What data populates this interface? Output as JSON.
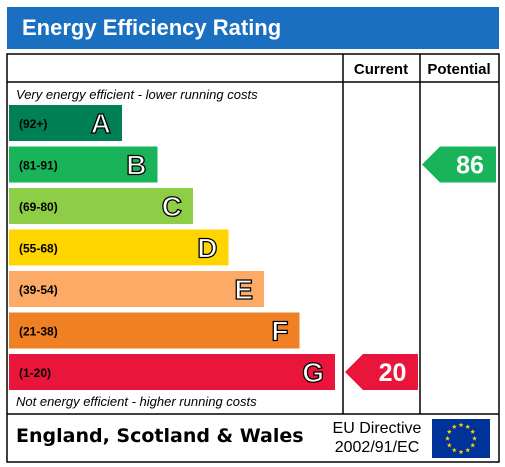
{
  "header": {
    "title": "Energy Efficiency Rating"
  },
  "columns": {
    "current": "Current",
    "potential": "Potential"
  },
  "chart_data": {
    "type": "bar",
    "top_note": "Very energy efficient - lower running costs",
    "bottom_note": "Not energy efficient - higher running costs",
    "bands": [
      {
        "letter": "A",
        "range": "(92+)",
        "color": "#008054"
      },
      {
        "letter": "B",
        "range": "(81-91)",
        "color": "#19b459"
      },
      {
        "letter": "C",
        "range": "(69-80)",
        "color": "#8dce46"
      },
      {
        "letter": "D",
        "range": "(55-68)",
        "color": "#ffd500"
      },
      {
        "letter": "E",
        "range": "(39-54)",
        "color": "#fcaa65"
      },
      {
        "letter": "F",
        "range": "(21-38)",
        "color": "#ef8023"
      },
      {
        "letter": "G",
        "range": "(1-20)",
        "color": "#e9153b"
      }
    ],
    "current": {
      "value": 20,
      "band": "G",
      "color": "#e9153b"
    },
    "potential": {
      "value": 86,
      "band": "B",
      "color": "#19b459"
    }
  },
  "footer": {
    "region": "England, Scotland & Wales",
    "directive_line1": "EU Directive",
    "directive_line2": "2002/91/EC"
  },
  "colors": {
    "title_bar": "#1a6fc0",
    "eu_flag": "#003399",
    "eu_stars": "#ffcc00"
  }
}
